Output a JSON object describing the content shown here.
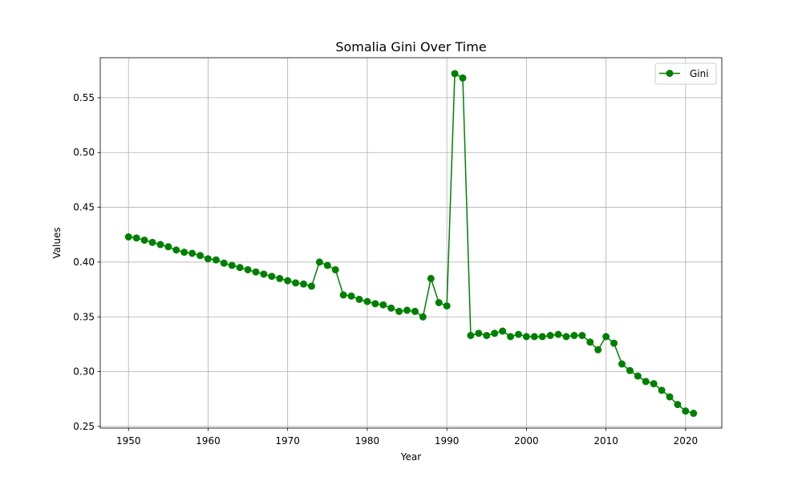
{
  "chart_data": {
    "type": "line",
    "title": "Somalia Gini Over Time",
    "xlabel": "Year",
    "ylabel": "Values",
    "xlim": [
      1946.45,
      2024.55
    ],
    "ylim": [
      0.2485,
      0.5865
    ],
    "xticks": [
      1950,
      1960,
      1970,
      1980,
      1990,
      2000,
      2010,
      2020
    ],
    "yticks": [
      0.25,
      0.3,
      0.35,
      0.4,
      0.45,
      0.5,
      0.55
    ],
    "ytick_labels": [
      "0.25",
      "0.30",
      "0.35",
      "0.40",
      "0.45",
      "0.50",
      "0.55"
    ],
    "grid": true,
    "legend_position": "top-right",
    "series": [
      {
        "name": "Gini",
        "color": "#008000",
        "marker": "circle",
        "x": [
          1950,
          1951,
          1952,
          1953,
          1954,
          1955,
          1956,
          1957,
          1958,
          1959,
          1960,
          1961,
          1962,
          1963,
          1964,
          1965,
          1966,
          1967,
          1968,
          1969,
          1970,
          1971,
          1972,
          1973,
          1974,
          1975,
          1976,
          1977,
          1978,
          1979,
          1980,
          1981,
          1982,
          1983,
          1984,
          1985,
          1986,
          1987,
          1988,
          1989,
          1990,
          1991,
          1992,
          1993,
          1994,
          1995,
          1996,
          1997,
          1998,
          1999,
          2000,
          2001,
          2002,
          2003,
          2004,
          2005,
          2006,
          2007,
          2008,
          2009,
          2010,
          2011,
          2012,
          2013,
          2014,
          2015,
          2016,
          2017,
          2018,
          2019,
          2020,
          2021
        ],
        "y": [
          0.423,
          0.422,
          0.42,
          0.418,
          0.416,
          0.414,
          0.411,
          0.409,
          0.408,
          0.406,
          0.403,
          0.402,
          0.399,
          0.397,
          0.395,
          0.393,
          0.391,
          0.389,
          0.387,
          0.385,
          0.383,
          0.381,
          0.38,
          0.378,
          0.4,
          0.397,
          0.393,
          0.37,
          0.369,
          0.366,
          0.364,
          0.362,
          0.361,
          0.358,
          0.355,
          0.356,
          0.355,
          0.35,
          0.385,
          0.363,
          0.36,
          0.572,
          0.568,
          0.333,
          0.335,
          0.333,
          0.335,
          0.337,
          0.332,
          0.334,
          0.332,
          0.332,
          0.332,
          0.333,
          0.334,
          0.332,
          0.333,
          0.333,
          0.327,
          0.32,
          0.332,
          0.326,
          0.307,
          0.301,
          0.296,
          0.291,
          0.289,
          0.283,
          0.277,
          0.27,
          0.264,
          0.262
        ]
      }
    ]
  }
}
